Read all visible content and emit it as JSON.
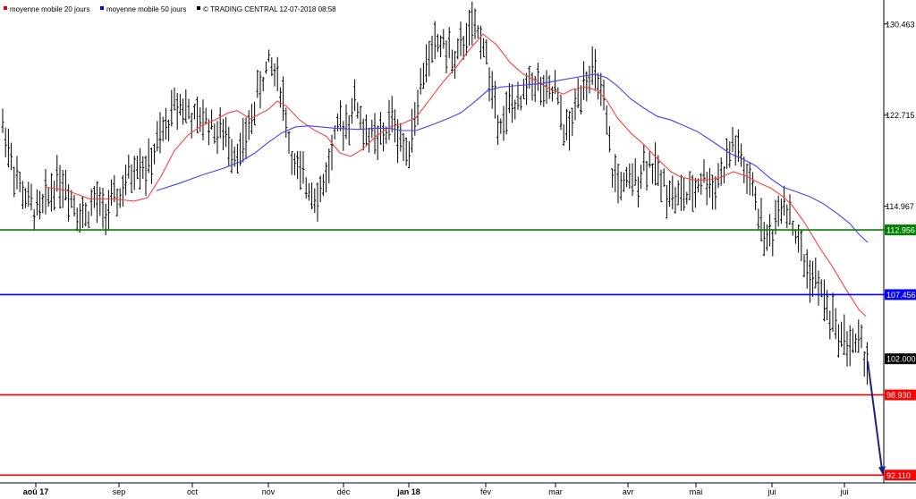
{
  "chart_data": {
    "type": "ohlc",
    "legend": [
      {
        "label": "moyenne mobile 20 jours",
        "color": "#e60000"
      },
      {
        "label": "moyenne mobile 50 jours",
        "color": "#0000e6"
      },
      {
        "label": "© TRADING CENTRAL 12-07-2018 08:58",
        "color": "#000000"
      }
    ],
    "y_axis": {
      "ylim": [
        91.6,
        132.5
      ],
      "ticks": [
        "130.463",
        "122.715",
        "114.967"
      ]
    },
    "x_axis": {
      "months": [
        {
          "label": "aoû 17",
          "bold": true
        },
        {
          "label": "sep",
          "bold": false
        },
        {
          "label": "oct",
          "bold": false
        },
        {
          "label": "nov",
          "bold": false
        },
        {
          "label": "déc",
          "bold": false
        },
        {
          "label": "jan 18",
          "bold": true
        },
        {
          "label": "fév",
          "bold": false
        },
        {
          "label": "mar",
          "bold": false
        },
        {
          "label": "avr",
          "bold": false
        },
        {
          "label": "mai",
          "bold": false
        },
        {
          "label": "jui",
          "bold": false
        },
        {
          "label": "jui",
          "bold": false
        }
      ]
    },
    "levels": [
      {
        "value": 112.956,
        "label": "112.956",
        "color": "#008000",
        "text_color": "#ffffff"
      },
      {
        "value": 107.456,
        "label": "107.456",
        "color": "#0000ff",
        "text_color": "#ffffff"
      },
      {
        "value": 102.0,
        "label": "102.000",
        "color": "#000000",
        "text_color": "#ffffff"
      },
      {
        "value": 98.93,
        "label": "98.930",
        "color": "#ff0000",
        "text_color": "#ffffff"
      },
      {
        "value": 92.11,
        "label": "92.110",
        "color": "#ff0000",
        "text_color": "#ffffff"
      }
    ],
    "projection": {
      "from": 101.8,
      "to": 92.1,
      "color": "#1a237e"
    },
    "price_path": [
      [
        0,
        122.7
      ],
      [
        10,
        120
      ],
      [
        20,
        117
      ],
      [
        33,
        115
      ],
      [
        45,
        114.5
      ],
      [
        55,
        116
      ],
      [
        65,
        117.5
      ],
      [
        75,
        116.5
      ],
      [
        85,
        115
      ],
      [
        95,
        114
      ],
      [
        105,
        115.5
      ],
      [
        115,
        114.5
      ],
      [
        125,
        115
      ],
      [
        135,
        116
      ],
      [
        145,
        117.5
      ],
      [
        155,
        119
      ],
      [
        165,
        118
      ],
      [
        175,
        120
      ],
      [
        185,
        121.5
      ],
      [
        192,
        123
      ],
      [
        200,
        124
      ],
      [
        210,
        123
      ],
      [
        220,
        122
      ],
      [
        230,
        122.5
      ],
      [
        240,
        121.5
      ],
      [
        250,
        121
      ],
      [
        260,
        120
      ],
      [
        270,
        119.5
      ],
      [
        278,
        121.5
      ],
      [
        285,
        123.5
      ],
      [
        292,
        125.5
      ],
      [
        300,
        127
      ],
      [
        308,
        126.5
      ],
      [
        316,
        124.5
      ],
      [
        322,
        121
      ],
      [
        330,
        118
      ],
      [
        340,
        117
      ],
      [
        350,
        116.5
      ],
      [
        358,
        116
      ],
      [
        366,
        118
      ],
      [
        374,
        120.5
      ],
      [
        382,
        122
      ],
      [
        390,
        122.5
      ],
      [
        398,
        124
      ],
      [
        406,
        121.5
      ],
      [
        414,
        121
      ],
      [
        422,
        120.5
      ],
      [
        430,
        121
      ],
      [
        438,
        122.5
      ],
      [
        446,
        121
      ],
      [
        454,
        119.5
      ],
      [
        462,
        122
      ],
      [
        470,
        125
      ],
      [
        478,
        127.5
      ],
      [
        486,
        128.5
      ],
      [
        494,
        129
      ],
      [
        502,
        128
      ],
      [
        510,
        127
      ],
      [
        518,
        129
      ],
      [
        526,
        130
      ],
      [
        534,
        129.5
      ],
      [
        542,
        129
      ],
      [
        548,
        125
      ],
      [
        556,
        123
      ],
      [
        564,
        122
      ],
      [
        572,
        124
      ],
      [
        580,
        123
      ],
      [
        588,
        125
      ],
      [
        596,
        126
      ],
      [
        604,
        125
      ],
      [
        612,
        124
      ],
      [
        620,
        125
      ],
      [
        628,
        122
      ],
      [
        636,
        121
      ],
      [
        644,
        123.5
      ],
      [
        652,
        126
      ],
      [
        660,
        126.5
      ],
      [
        668,
        125.5
      ],
      [
        676,
        123
      ],
      [
        684,
        118
      ],
      [
        692,
        117
      ],
      [
        700,
        116.5
      ],
      [
        708,
        117
      ],
      [
        716,
        118
      ],
      [
        724,
        119
      ],
      [
        732,
        118
      ],
      [
        740,
        117
      ],
      [
        748,
        116.5
      ],
      [
        756,
        115.5
      ],
      [
        764,
        116
      ],
      [
        772,
        115.5
      ],
      [
        780,
        117
      ],
      [
        788,
        117.5
      ],
      [
        796,
        116.5
      ],
      [
        804,
        117.5
      ],
      [
        812,
        118.5
      ],
      [
        820,
        120.5
      ],
      [
        828,
        119
      ],
      [
        836,
        117
      ],
      [
        844,
        116
      ],
      [
        852,
        113
      ],
      [
        860,
        112
      ],
      [
        868,
        114
      ],
      [
        876,
        116
      ],
      [
        884,
        114
      ],
      [
        892,
        112
      ],
      [
        900,
        110
      ],
      [
        908,
        109
      ],
      [
        916,
        108
      ],
      [
        924,
        106.5
      ],
      [
        932,
        105
      ],
      [
        940,
        104
      ],
      [
        948,
        103.5
      ],
      [
        956,
        103
      ],
      [
        962,
        103.5
      ],
      [
        968,
        102
      ]
    ],
    "ma20": [
      [
        50,
        116.6
      ],
      [
        75,
        116.3
      ],
      [
        100,
        115.6
      ],
      [
        125,
        115.6
      ],
      [
        150,
        115.4
      ],
      [
        165,
        115.7
      ],
      [
        180,
        117.5
      ],
      [
        195,
        119.7
      ],
      [
        210,
        121
      ],
      [
        225,
        121.8
      ],
      [
        240,
        122.3
      ],
      [
        255,
        122.9
      ],
      [
        265,
        123.1
      ],
      [
        280,
        122.4
      ],
      [
        300,
        123.2
      ],
      [
        310,
        123.9
      ],
      [
        320,
        123.5
      ],
      [
        335,
        122.3
      ],
      [
        350,
        121.5
      ],
      [
        365,
        120.9
      ],
      [
        380,
        119.5
      ],
      [
        392,
        119.2
      ],
      [
        405,
        119.8
      ],
      [
        420,
        120.9
      ],
      [
        435,
        121.7
      ],
      [
        450,
        122
      ],
      [
        465,
        122.5
      ],
      [
        480,
        124
      ],
      [
        495,
        125.5
      ],
      [
        510,
        126.8
      ],
      [
        525,
        128.3
      ],
      [
        540,
        129.6
      ],
      [
        555,
        128.7
      ],
      [
        570,
        127.2
      ],
      [
        585,
        126.2
      ],
      [
        600,
        125.6
      ],
      [
        615,
        124.9
      ],
      [
        630,
        124.5
      ],
      [
        640,
        124.9
      ],
      [
        655,
        125.1
      ],
      [
        668,
        124.8
      ],
      [
        678,
        124
      ],
      [
        690,
        122.5
      ],
      [
        705,
        121.2
      ],
      [
        720,
        120.2
      ],
      [
        735,
        119
      ],
      [
        750,
        117.9
      ],
      [
        760,
        117.5
      ],
      [
        775,
        117.2
      ],
      [
        790,
        117.2
      ],
      [
        805,
        117.4
      ],
      [
        820,
        117.9
      ],
      [
        835,
        117.5
      ],
      [
        850,
        116.9
      ],
      [
        862,
        116.5
      ],
      [
        875,
        115.8
      ],
      [
        885,
        115.1
      ],
      [
        900,
        113.5
      ],
      [
        915,
        111.6
      ],
      [
        930,
        109.9
      ],
      [
        945,
        108
      ],
      [
        960,
        106.2
      ],
      [
        968,
        105.6
      ]
    ],
    "ma50": [
      [
        175,
        116.3
      ],
      [
        200,
        116.9
      ],
      [
        225,
        117.6
      ],
      [
        250,
        118.2
      ],
      [
        270,
        118.8
      ],
      [
        285,
        119.5
      ],
      [
        300,
        120.4
      ],
      [
        315,
        121.2
      ],
      [
        330,
        121.7
      ],
      [
        345,
        121.8
      ],
      [
        360,
        121.7
      ],
      [
        375,
        121.6
      ],
      [
        400,
        121.5
      ],
      [
        420,
        121.6
      ],
      [
        435,
        121.6
      ],
      [
        450,
        121.4
      ],
      [
        465,
        121.4
      ],
      [
        480,
        121.8
      ],
      [
        500,
        122.4
      ],
      [
        515,
        122.9
      ],
      [
        530,
        123.8
      ],
      [
        545,
        124.8
      ],
      [
        560,
        125.1
      ],
      [
        575,
        125.2
      ],
      [
        590,
        125.3
      ],
      [
        605,
        125.4
      ],
      [
        620,
        125.6
      ],
      [
        635,
        125.8
      ],
      [
        650,
        126
      ],
      [
        665,
        126.2
      ],
      [
        678,
        125.9
      ],
      [
        690,
        125.2
      ],
      [
        705,
        124.1
      ],
      [
        720,
        123.3
      ],
      [
        735,
        122.6
      ],
      [
        750,
        122.3
      ],
      [
        765,
        121.8
      ],
      [
        780,
        121.3
      ],
      [
        800,
        120.3
      ],
      [
        815,
        119.5
      ],
      [
        830,
        119
      ],
      [
        845,
        118.4
      ],
      [
        860,
        117.4
      ],
      [
        875,
        116.6
      ],
      [
        890,
        116.2
      ],
      [
        905,
        115.8
      ],
      [
        920,
        115.2
      ],
      [
        935,
        114.4
      ],
      [
        950,
        113.5
      ],
      [
        960,
        112.6
      ],
      [
        970,
        111.9
      ]
    ]
  }
}
